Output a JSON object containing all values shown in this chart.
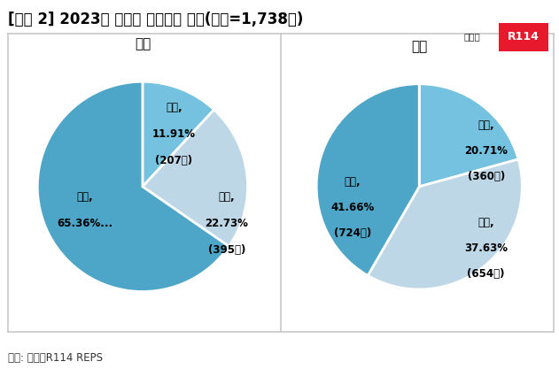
{
  "title": "[그림 2] 2023년 상반기 주택가격 전망(응답=1,738명)",
  "title_fontsize": 12,
  "source_text": "자료: 부동산R114 REPS",
  "chart1_title": "매매",
  "chart2_title": "전세",
  "chart1_labels_line1": [
    "상승,",
    "보합,",
    "하락,"
  ],
  "chart1_labels_line2": [
    "11.91%",
    "22.73%",
    "65.36%..."
  ],
  "chart1_labels_line3": [
    "(207명)",
    "(395명)",
    ""
  ],
  "chart1_values": [
    11.91,
    22.73,
    65.36
  ],
  "chart1_colors": [
    "#74c1e0",
    "#bdd7e7",
    "#4da6c8"
  ],
  "chart2_labels_line1": [
    "상승,",
    "보합,",
    "하락,"
  ],
  "chart2_labels_line2": [
    "20.71%",
    "37.63%",
    "41.66%"
  ],
  "chart2_labels_line3": [
    "(360명)",
    "(654명)",
    "(724명)"
  ],
  "chart2_values": [
    20.71,
    37.63,
    41.66
  ],
  "chart2_colors": [
    "#74c1e0",
    "#bdd7e7",
    "#4da6c8"
  ],
  "chart1_startangle": 90,
  "chart2_startangle": 90,
  "background_color": "#ffffff",
  "border_color": "#c8c8c8",
  "logo_text1": "부동산",
  "logo_text2": "R114",
  "logo_bg": "#e8192c",
  "logo_text_color": "#ffffff",
  "label_fontsize": 8.5
}
